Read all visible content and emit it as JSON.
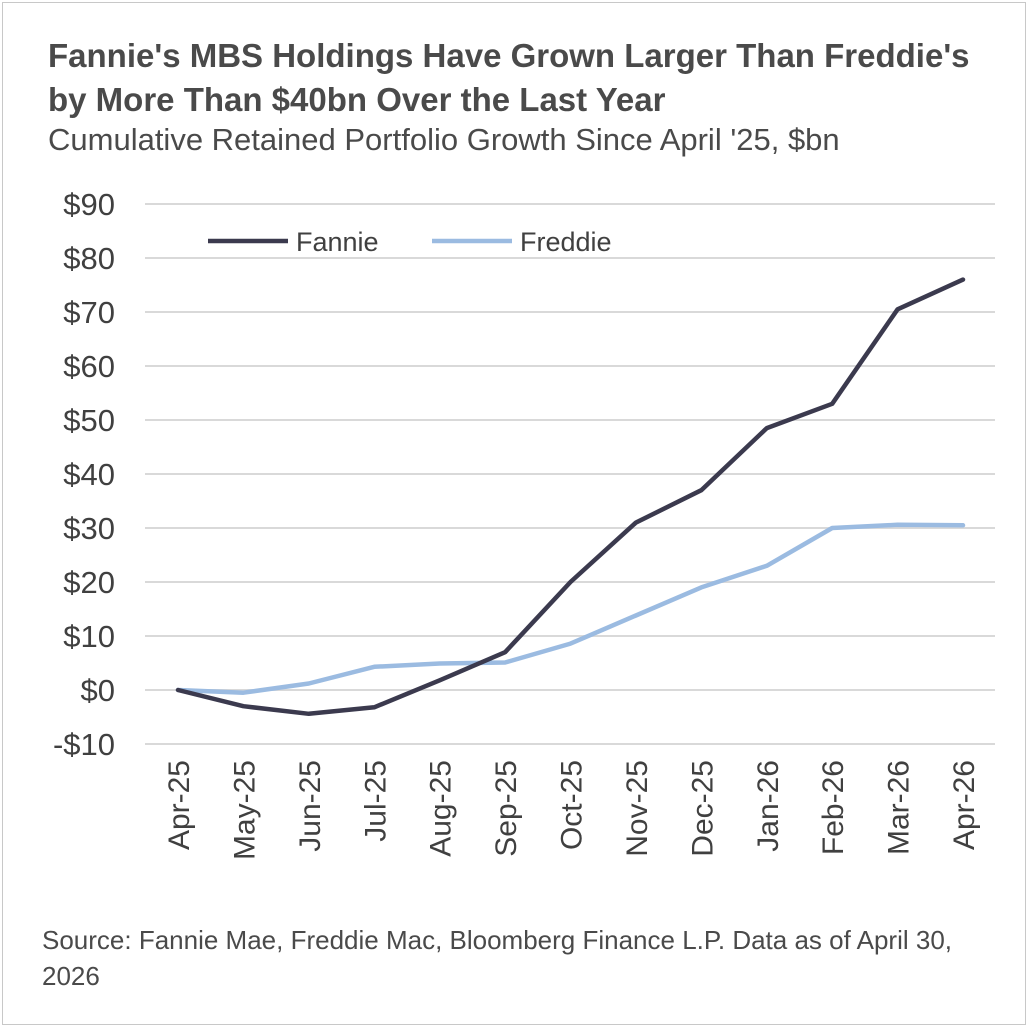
{
  "chart_data": {
    "type": "line",
    "title": "Fannie's MBS Holdings Have Grown Larger Than Freddie's by More Than $40bn Over the Last Year",
    "subtitle": "Cumulative Retained Portfolio Growth Since April '25, $bn",
    "xlabel": "",
    "ylabel": "",
    "categories": [
      "Apr-25",
      "May-25",
      "Jun-25",
      "Jul-25",
      "Aug-25",
      "Sep-25",
      "Oct-25",
      "Nov-25",
      "Dec-25",
      "Jan-26",
      "Feb-26",
      "Mar-26",
      "Apr-26"
    ],
    "ylim": [
      -10,
      90
    ],
    "yticks": [
      90,
      80,
      70,
      60,
      50,
      40,
      30,
      20,
      10,
      0,
      -10
    ],
    "ytick_labels": [
      "$90",
      "$80",
      "$70",
      "$60",
      "$50",
      "$40",
      "$30",
      "$20",
      "$10",
      "$0",
      "-$10"
    ],
    "grid": true,
    "legend_position": "top-left",
    "series": [
      {
        "name": "Fannie",
        "color": "#3b3a4e",
        "values": [
          0,
          -3,
          -4.4,
          -3.2,
          1.8,
          7,
          20,
          31,
          37,
          48.5,
          53,
          70.5,
          76
        ]
      },
      {
        "name": "Freddie",
        "color": "#9bbbe1",
        "values": [
          0,
          -0.5,
          1.2,
          4.3,
          4.9,
          5.1,
          8.6,
          13.8,
          19,
          23,
          30,
          30.6,
          30.5
        ]
      }
    ],
    "source": "Source: Fannie Mae, Freddie Mac, Bloomberg Finance L.P. Data as of April 30, 2026"
  }
}
